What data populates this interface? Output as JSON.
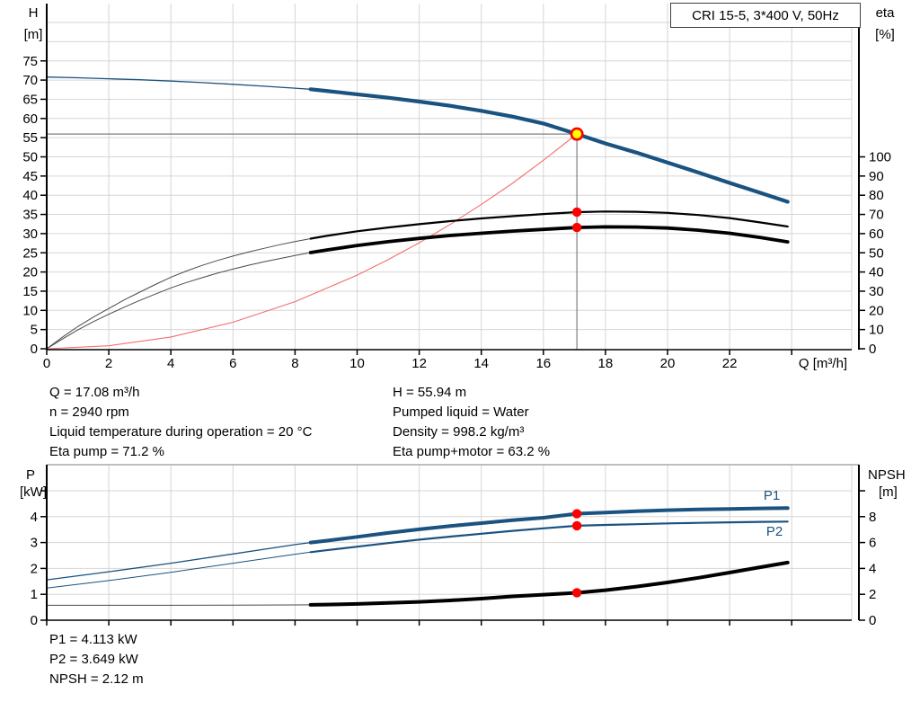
{
  "title_box": "CRI 15-5, 3*400 V, 50Hz",
  "colors": {
    "curve_blue": "#1a5280",
    "curve_black": "#000000",
    "curve_thin_gray": "#4a4a4a",
    "speed_red": "#f26f6f",
    "marker_red": "#ff0000",
    "marker_yellow": "#ffff00",
    "grid": "#d6d6d6",
    "grid_dark": "#a9a9a9",
    "crosshair": "#7f7f7f",
    "axis": "#000000"
  },
  "annotations": {
    "top_left": [
      "Q = 17.08 m³/h",
      "n = 2940 rpm",
      "Liquid temperature during operation = 20 °C",
      "Eta pump = 71.2 %"
    ],
    "top_right": [
      "H = 55.94 m",
      "Pumped liquid = Water",
      "Density = 998.2 kg/m³",
      "Eta pump+motor = 63.2 %"
    ],
    "bottom": [
      "P1 = 4.113 kW",
      "P2 = 3.649 kW",
      "NPSH = 2.12 m"
    ]
  },
  "chart_data": [
    {
      "type": "line",
      "title": "CRI 15-5, 3*400 V, 50Hz",
      "xlabel": "Q [m³/h]",
      "xlim": [
        0,
        26
      ],
      "x_ticks": [
        0,
        2,
        4,
        6,
        8,
        10,
        12,
        14,
        16,
        18,
        20,
        22,
        24
      ],
      "x_tick_labels": [
        "0",
        "2",
        "4",
        "6",
        "8",
        "10",
        "12",
        "14",
        "16",
        "18",
        "20",
        "22"
      ],
      "left_axis": {
        "title": [
          "H",
          "[m]"
        ],
        "ticks": [
          0,
          5,
          10,
          15,
          20,
          25,
          30,
          35,
          40,
          45,
          50,
          55,
          60,
          65,
          70,
          75
        ],
        "lim": [
          0,
          90
        ],
        "grid_step": 5,
        "grid_max": 85
      },
      "right_axis": {
        "title": [
          "eta",
          "[%]"
        ],
        "ticks": [
          0,
          10,
          20,
          30,
          40,
          50,
          60,
          70,
          80,
          90,
          100
        ],
        "extra_ticks": []
      },
      "series": [
        {
          "name": "speed-parabola-curve",
          "color": "#f26f6f",
          "axis": "left",
          "thin": 1.1,
          "points": [
            [
              0,
              0
            ],
            [
              2,
              0.77
            ],
            [
              4,
              3.07
            ],
            [
              6,
              6.9
            ],
            [
              8,
              12.27
            ],
            [
              10,
              19.17
            ],
            [
              11,
              23.2
            ],
            [
              12,
              27.6
            ],
            [
              13,
              32.4
            ],
            [
              14,
              37.6
            ],
            [
              15,
              43.1
            ],
            [
              16,
              49.1
            ],
            [
              17.08,
              55.94
            ]
          ]
        },
        {
          "name": "qh-curve",
          "color": "#1a5280",
          "axis": "left",
          "split_q": 8.5,
          "thin": 1.3,
          "thick": 4.2,
          "points": [
            [
              0,
              70.8
            ],
            [
              1,
              70.6
            ],
            [
              2,
              70.35
            ],
            [
              3,
              70.1
            ],
            [
              4,
              69.75
            ],
            [
              5,
              69.35
            ],
            [
              6,
              68.9
            ],
            [
              7,
              68.4
            ],
            [
              8,
              67.9
            ],
            [
              8.5,
              67.6
            ],
            [
              9,
              67.2
            ],
            [
              10,
              66.3
            ],
            [
              11,
              65.4
            ],
            [
              12,
              64.4
            ],
            [
              13,
              63.3
            ],
            [
              14,
              62.0
            ],
            [
              15,
              60.5
            ],
            [
              16,
              58.7
            ],
            [
              17.08,
              55.94
            ],
            [
              18,
              53.5
            ],
            [
              19,
              51.1
            ],
            [
              20,
              48.5
            ],
            [
              21,
              45.9
            ],
            [
              22,
              43.2
            ],
            [
              23,
              40.6
            ],
            [
              23.87,
              38.3
            ]
          ]
        },
        {
          "name": "eta-pump-curve",
          "color": "#000000",
          "thin_color": "#4a4a4a",
          "axis": "right",
          "split_q": 8.5,
          "thin": 1,
          "thick": 2.2,
          "points": [
            [
              0,
              0
            ],
            [
              0.5,
              6
            ],
            [
              1,
              11.5
            ],
            [
              1.5,
              16.5
            ],
            [
              2,
              21
            ],
            [
              2.5,
              25.5
            ],
            [
              3,
              29.5
            ],
            [
              3.5,
              33.5
            ],
            [
              4,
              37.3
            ],
            [
              4.5,
              40.5
            ],
            [
              5,
              43.4
            ],
            [
              5.5,
              46
            ],
            [
              6,
              48.3
            ],
            [
              6.5,
              50.4
            ],
            [
              7,
              52.3
            ],
            [
              7.5,
              54.2
            ],
            [
              8,
              55.9
            ],
            [
              8.5,
              57.4
            ],
            [
              9,
              58.8
            ],
            [
              10,
              61.2
            ],
            [
              11,
              63.2
            ],
            [
              12,
              64.9
            ],
            [
              13,
              66.5
            ],
            [
              14,
              67.9
            ],
            [
              15,
              69.1
            ],
            [
              16,
              70.2
            ],
            [
              17.08,
              71.2
            ],
            [
              18,
              71.5
            ],
            [
              19,
              71.4
            ],
            [
              20,
              70.8
            ],
            [
              21,
              69.7
            ],
            [
              22,
              68.1
            ],
            [
              23,
              65.8
            ],
            [
              23.87,
              63.7
            ]
          ]
        },
        {
          "name": "eta-pump-motor-curve",
          "color": "#000000",
          "thin_color": "#4a4a4a",
          "axis": "right",
          "split_q": 8.5,
          "thin": 1,
          "thick": 3.8,
          "points": [
            [
              0,
              0
            ],
            [
              0.5,
              5
            ],
            [
              1,
              9.8
            ],
            [
              1.5,
              14.1
            ],
            [
              2,
              18
            ],
            [
              2.5,
              21.7
            ],
            [
              3,
              25.2
            ],
            [
              3.5,
              28.5
            ],
            [
              4,
              31.7
            ],
            [
              4.5,
              34.5
            ],
            [
              5,
              37
            ],
            [
              5.5,
              39.4
            ],
            [
              6,
              41.5
            ],
            [
              6.5,
              43.5
            ],
            [
              7,
              45.3
            ],
            [
              7.5,
              47
            ],
            [
              8,
              48.6
            ],
            [
              8.5,
              50.1
            ],
            [
              9,
              51.4
            ],
            [
              10,
              53.8
            ],
            [
              11,
              55.8
            ],
            [
              12,
              57.5
            ],
            [
              13,
              59
            ],
            [
              14,
              60.2
            ],
            [
              15,
              61.3
            ],
            [
              16,
              62.2
            ],
            [
              17.08,
              63.2
            ],
            [
              18,
              63.5
            ],
            [
              19,
              63.4
            ],
            [
              20,
              62.9
            ],
            [
              21,
              61.8
            ],
            [
              22,
              60.2
            ],
            [
              23,
              58
            ],
            [
              23.87,
              55.7
            ]
          ]
        }
      ],
      "crosshair": {
        "q": 17.08,
        "h": 55.94
      },
      "duty_point": {
        "q": 17.08,
        "h": 55.94,
        "label_q": "17.08",
        "label_h": "55.94"
      },
      "markers": [
        {
          "name": "eta-pump-duty-dot",
          "axis": "right",
          "q": 17.08,
          "v": 71.2
        },
        {
          "name": "eta-pump-motor-duty-dot",
          "axis": "right",
          "q": 17.08,
          "v": 63.2
        }
      ]
    },
    {
      "type": "line",
      "xlabel": "",
      "xlim": [
        0,
        26
      ],
      "x_ticks": [
        0,
        2,
        4,
        6,
        8,
        10,
        12,
        14,
        16,
        18,
        20,
        22,
        24
      ],
      "x_tick_labels": [],
      "left_axis": {
        "title": [
          "P",
          "[kW]"
        ],
        "ticks": [
          0,
          1,
          2,
          3,
          4
        ],
        "extra_ticks": [
          5
        ],
        "lim": [
          0,
          6
        ],
        "grid_step": 1,
        "grid_max": 5
      },
      "right_axis": {
        "title": [
          "NPSH",
          "[m]"
        ],
        "ticks": [
          0,
          2,
          4,
          6,
          8
        ],
        "extra_ticks": [
          10
        ]
      },
      "series": [
        {
          "name": "p1-curve",
          "color": "#1a5280",
          "axis": "left",
          "split_q": 8.5,
          "thin": 1.3,
          "thick": 4,
          "label": "P1",
          "points": [
            [
              0,
              1.56
            ],
            [
              2,
              1.87
            ],
            [
              4,
              2.2
            ],
            [
              6,
              2.56
            ],
            [
              8,
              2.92
            ],
            [
              8.5,
              3.0
            ],
            [
              9,
              3.07
            ],
            [
              10,
              3.22
            ],
            [
              11,
              3.37
            ],
            [
              12,
              3.51
            ],
            [
              13,
              3.64
            ],
            [
              14,
              3.75
            ],
            [
              15,
              3.86
            ],
            [
              16,
              3.96
            ],
            [
              17.08,
              4.113
            ],
            [
              18,
              4.16
            ],
            [
              19,
              4.21
            ],
            [
              20,
              4.25
            ],
            [
              21,
              4.28
            ],
            [
              22,
              4.3
            ],
            [
              23,
              4.32
            ],
            [
              23.87,
              4.33
            ]
          ]
        },
        {
          "name": "p2-curve",
          "color": "#1a5280",
          "axis": "left",
          "split_q": 8.5,
          "thin": 1,
          "thick": 2.2,
          "label": "P2",
          "points": [
            [
              0,
              1.24
            ],
            [
              2,
              1.53
            ],
            [
              4,
              1.85
            ],
            [
              6,
              2.2
            ],
            [
              8,
              2.55
            ],
            [
              8.5,
              2.63
            ],
            [
              9,
              2.7
            ],
            [
              10,
              2.84
            ],
            [
              11,
              2.98
            ],
            [
              12,
              3.11
            ],
            [
              13,
              3.23
            ],
            [
              14,
              3.34
            ],
            [
              15,
              3.45
            ],
            [
              16,
              3.55
            ],
            [
              17.08,
              3.649
            ],
            [
              18,
              3.68
            ],
            [
              19,
              3.71
            ],
            [
              20,
              3.74
            ],
            [
              21,
              3.76
            ],
            [
              22,
              3.78
            ],
            [
              23,
              3.8
            ],
            [
              23.87,
              3.81
            ]
          ]
        },
        {
          "name": "npsh-curve",
          "color": "#000000",
          "thin_color": "#4a4a4a",
          "axis": "right",
          "split_q": 8.5,
          "thin": 1,
          "thick": 4,
          "points": [
            [
              0,
              1.15
            ],
            [
              2,
              1.15
            ],
            [
              4,
              1.15
            ],
            [
              6,
              1.16
            ],
            [
              8,
              1.18
            ],
            [
              8.5,
              1.19
            ],
            [
              9,
              1.21
            ],
            [
              10,
              1.26
            ],
            [
              11,
              1.33
            ],
            [
              12,
              1.42
            ],
            [
              13,
              1.53
            ],
            [
              14,
              1.67
            ],
            [
              15,
              1.84
            ],
            [
              16,
              1.97
            ],
            [
              17.08,
              2.12
            ],
            [
              18,
              2.32
            ],
            [
              19,
              2.6
            ],
            [
              20,
              2.92
            ],
            [
              21,
              3.28
            ],
            [
              22,
              3.68
            ],
            [
              23,
              4.1
            ],
            [
              23.87,
              4.45
            ]
          ]
        }
      ],
      "markers": [
        {
          "name": "p1-duty-dot",
          "axis": "left",
          "q": 17.08,
          "v": 4.113
        },
        {
          "name": "p2-duty-dot",
          "axis": "left",
          "q": 17.08,
          "v": 3.649
        },
        {
          "name": "npsh-duty-dot",
          "axis": "right",
          "q": 17.08,
          "v": 2.12
        }
      ]
    }
  ]
}
